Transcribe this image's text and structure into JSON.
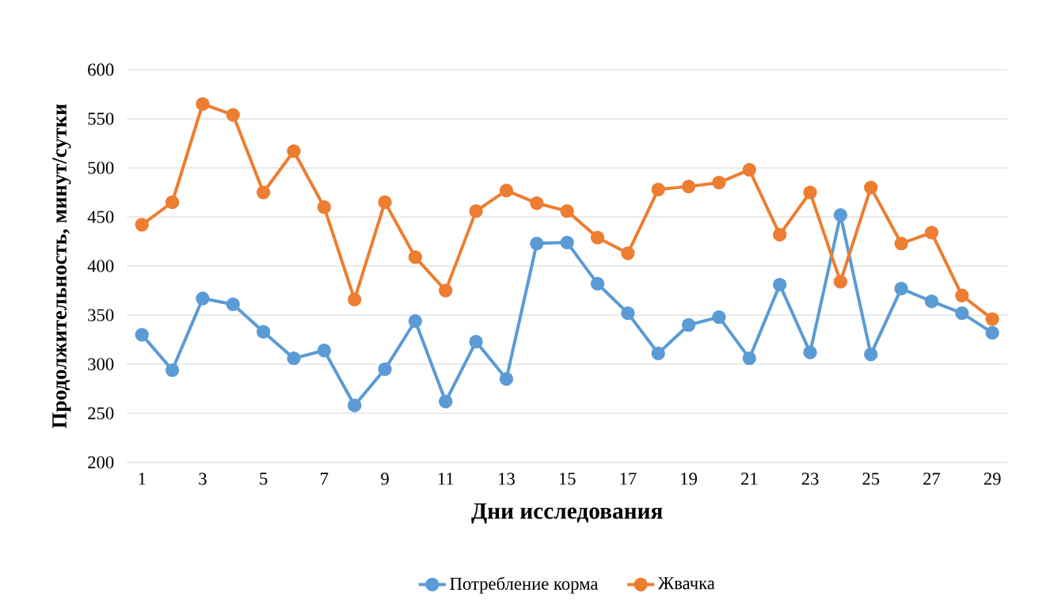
{
  "chart_data": {
    "type": "line",
    "xlabel": "Дни исследования",
    "ylabel": "Продолжительность, минут/сутки",
    "x": [
      1,
      2,
      3,
      4,
      5,
      6,
      7,
      8,
      9,
      10,
      11,
      12,
      13,
      14,
      15,
      16,
      17,
      18,
      19,
      20,
      21,
      22,
      23,
      24,
      25,
      26,
      27,
      28,
      29
    ],
    "series": [
      {
        "name": "Потребление корма",
        "color": "#5b9bd5",
        "values": [
          330,
          294,
          367,
          361,
          333,
          306,
          314,
          258,
          295,
          344,
          262,
          323,
          285,
          423,
          424,
          382,
          352,
          311,
          340,
          348,
          306,
          381,
          312,
          452,
          310,
          377,
          364,
          352,
          332
        ]
      },
      {
        "name": "Жвачка",
        "color": "#ed7d31",
        "values": [
          442,
          465,
          565,
          554,
          475,
          517,
          460,
          366,
          465,
          409,
          375,
          456,
          477,
          464,
          456,
          429,
          413,
          478,
          481,
          485,
          498,
          432,
          475,
          384,
          480,
          423,
          434,
          370,
          346
        ]
      }
    ],
    "xlim": [
      0.5,
      29.5
    ],
    "xticks": [
      1,
      3,
      5,
      7,
      9,
      11,
      13,
      15,
      17,
      19,
      21,
      23,
      25,
      27,
      29
    ],
    "ylim": [
      200,
      600
    ],
    "yticks": [
      200,
      250,
      300,
      350,
      400,
      450,
      500,
      550,
      600
    ],
    "grid": "y",
    "legend": "bottom",
    "marker": "circle",
    "line_style": "solid"
  }
}
